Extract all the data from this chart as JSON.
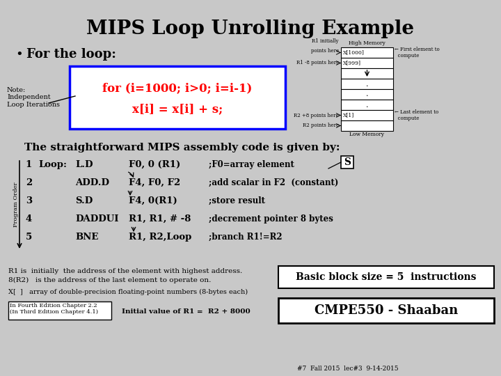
{
  "title": "MIPS Loop Unrolling Example",
  "bg_color": "#c8c8c8",
  "title_color": "#000000",
  "for_loop_text": "for (i=1000; i>0; i=i-1)",
  "body_text": "x[i] = x[i] + s;",
  "note_text": "Note:\nIndependent\nLoop Iterations",
  "bullet_text": "For the loop:",
  "assembly_header": "The straightforward MIPS assembly code is given by:",
  "assembly_lines": [
    [
      "1",
      "Loop:",
      "L.D",
      "F0, 0 (R1)",
      ";F0=array element"
    ],
    [
      "2",
      "",
      "ADD.D",
      "F4, F0, F2",
      ";add scalar in F2  (constant)"
    ],
    [
      "3",
      "",
      "S.D",
      "F4, 0(R1)",
      ";store result"
    ],
    [
      "4",
      "",
      "DADDUI",
      "R1, R1, # -8",
      ";decrement pointer 8 bytes"
    ],
    [
      "5",
      "",
      "BNE",
      "R1, R2,Loop",
      ";branch R1!=R2"
    ]
  ],
  "r1_note1": "R1 is  initially  the address of the element with highest address.",
  "r1_note2": "8(R2)   is the address of the last element to operate on.",
  "x_array_note": "X[  ]   array of double-precision floating-point numbers (8-bytes each)",
  "fourth_ed": "In Fourth Edition Chapter 2.2\n(In Third Edition Chapter 4.1)",
  "initial_val": "Initial value of R1 =  R2 + 8000",
  "basic_block": "Basic block size = 5  instructions",
  "cmpe": "CMPE550 - Shaaban",
  "footnote": "#7  Fall 2015  lec#3  9-14-2015",
  "mem_diagram": {
    "high_mem": "High Memory",
    "low_mem": "Low Memory",
    "r1_init": "R1 initially\npoints here",
    "r1_8_points": "R1 -8 points here",
    "r2_8_points": "R2 +8 points here",
    "r2_points": "R2 points here",
    "x1000": "X[1000]",
    "x999": "X[999]",
    "x1": "X[1]",
    "first_elem": "First element to\ncompute",
    "last_elem": "Last element to\ncompute"
  }
}
